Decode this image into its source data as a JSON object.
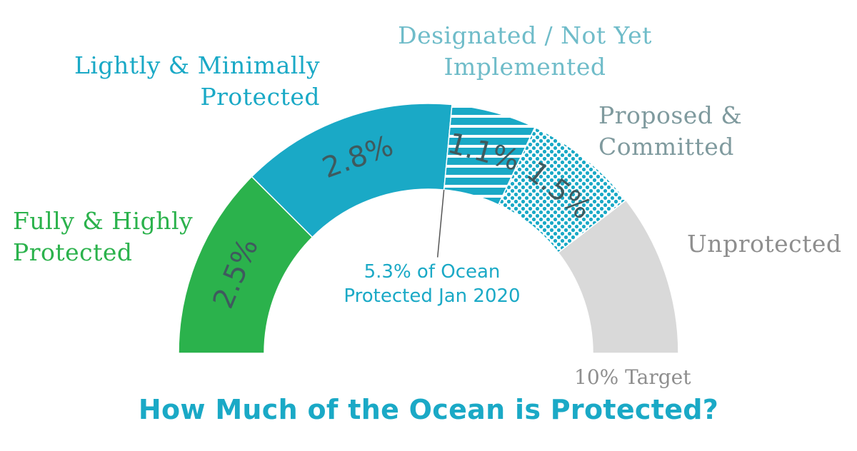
{
  "chart_data": {
    "type": "gauge",
    "title": "How Much of the Ocean is Protected?",
    "center_note": [
      "5.3% of Ocean",
      "Protected Jan 2020"
    ],
    "target_label": "10% Target",
    "scale_max": 10,
    "segments": [
      {
        "name_lines": [
          "Fully & Highly",
          "Protected"
        ],
        "value": 2.5,
        "value_label": "2.5%",
        "color": "#2bb24c",
        "pattern": "solid"
      },
      {
        "name_lines": [
          "Lightly & Minimally",
          "Protected"
        ],
        "value": 2.8,
        "value_label": "2.8%",
        "color": "#1aa9c6",
        "pattern": "solid"
      },
      {
        "name_lines": [
          "Designated / Not Yet",
          "Implemented"
        ],
        "value": 1.1,
        "value_label": "1.1%",
        "color": "#1aa9c6",
        "pattern": "stripes"
      },
      {
        "name_lines": [
          "Proposed &",
          "Committed"
        ],
        "value": 1.5,
        "value_label": "1.5%",
        "color": "#1aa9c6",
        "pattern": "dots"
      },
      {
        "name_lines": [
          "Unprotected"
        ],
        "value": 2.1,
        "value_label": "",
        "color": "#d9d9d9",
        "pattern": "solid"
      }
    ],
    "marker_value": 5.3
  }
}
